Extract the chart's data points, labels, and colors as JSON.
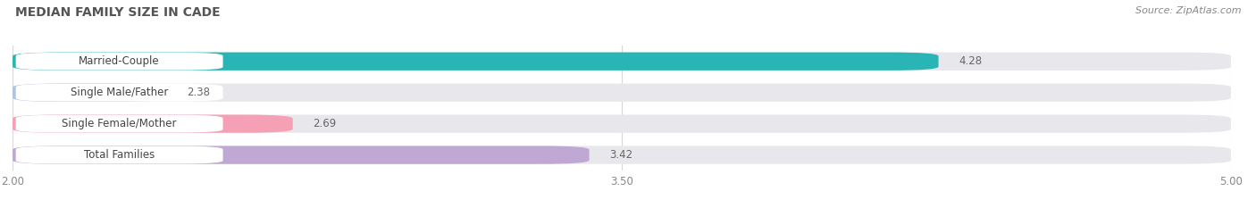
{
  "title": "MEDIAN FAMILY SIZE IN CADE",
  "source": "Source: ZipAtlas.com",
  "categories": [
    "Married-Couple",
    "Single Male/Father",
    "Single Female/Mother",
    "Total Families"
  ],
  "values": [
    4.28,
    2.38,
    2.69,
    3.42
  ],
  "bar_colors": [
    "#29b5b5",
    "#adc4e8",
    "#f5a0b4",
    "#c0a8d4"
  ],
  "xmin": 2.0,
  "xmax": 5.0,
  "xticks": [
    2.0,
    3.5,
    5.0
  ],
  "bar_height": 0.58,
  "figsize": [
    14.06,
    2.33
  ],
  "dpi": 100,
  "title_fontsize": 10,
  "source_fontsize": 8,
  "label_fontsize": 8.5,
  "value_fontsize": 8.5,
  "tick_fontsize": 8.5,
  "background_color": "#ffffff",
  "bar_bg_color": "#e8e8ec",
  "grid_color": "#d8d8d8",
  "label_box_color": "#ffffff",
  "label_text_color": "#444444",
  "value_text_color": "#666666",
  "title_color": "#555555",
  "source_color": "#888888"
}
